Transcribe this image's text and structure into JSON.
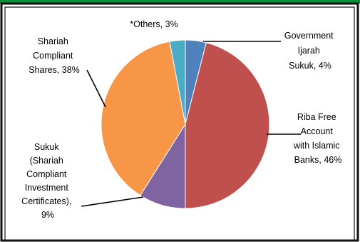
{
  "colors": {
    "top_bar": "#0b8f3a",
    "outer_border": "#111111",
    "inner_border": "#111111",
    "leader": "#000000"
  },
  "chart_data": {
    "type": "pie",
    "title": "",
    "slices": [
      {
        "label_lines": [
          "Government",
          "Ijarah",
          "Sukuk, 4%"
        ],
        "value": 4,
        "color": "#4f81bd"
      },
      {
        "label_lines": [
          "Riba Free",
          "Account",
          "with Islamic",
          "Banks, 46%"
        ],
        "value": 46,
        "color": "#c0504d"
      },
      {
        "label_lines": [
          "Sukuk",
          "(Shariah",
          "Compliant",
          "Investment",
          "Certificates),",
          "9%"
        ],
        "value": 9,
        "color": "#8064a2"
      },
      {
        "label_lines": [
          "Shariah",
          "Compliant",
          "Shares, 38%"
        ],
        "value": 38,
        "color": "#f79646"
      },
      {
        "label_lines": [
          "*Others, 3%"
        ],
        "value": 3,
        "color": "#4bacc6"
      }
    ]
  }
}
